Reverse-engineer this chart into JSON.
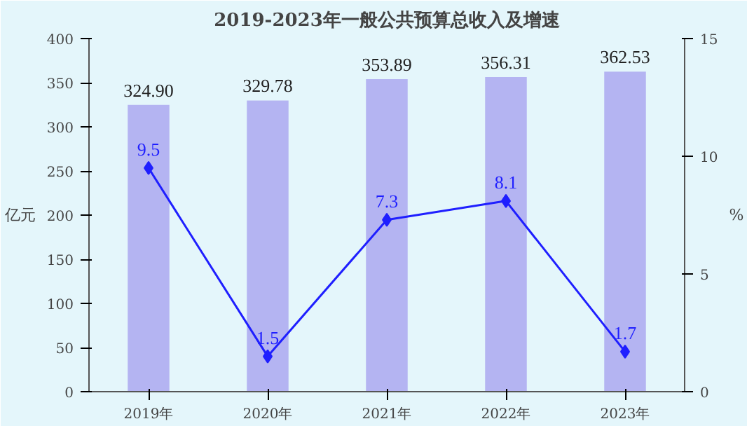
{
  "chart_data": {
    "type": "bar",
    "title": "2019-2023年一般公共预算总收入及增速",
    "ylabel": "亿元",
    "y2label": "%",
    "categories": [
      "2019年",
      "2020年",
      "2021年",
      "2022年",
      "2023年"
    ],
    "series": [
      {
        "color": "#b4b4f2",
        "values": [
          324.9,
          329.78,
          353.89,
          356.31,
          362.53
        ],
        "value_labels": [
          "324.90",
          "329.78",
          "353.89",
          "356.31",
          "362.53"
        ]
      },
      {
        "type": "line",
        "axis": "y2",
        "color": "#1f1fff",
        "values": [
          9.5,
          1.5,
          7.3,
          8.1,
          1.7
        ],
        "value_labels": [
          "9.5",
          "1.5",
          "7.3",
          "8.1",
          "1.7"
        ]
      }
    ],
    "ylim": [
      0,
      400
    ],
    "yticks": [
      0,
      50,
      100,
      150,
      200,
      250,
      300,
      350,
      400
    ],
    "y2lim": [
      0,
      15
    ],
    "y2ticks": [
      0,
      5,
      10,
      15
    ],
    "marker": "diamond",
    "line_style": "solid",
    "grid": false
  }
}
